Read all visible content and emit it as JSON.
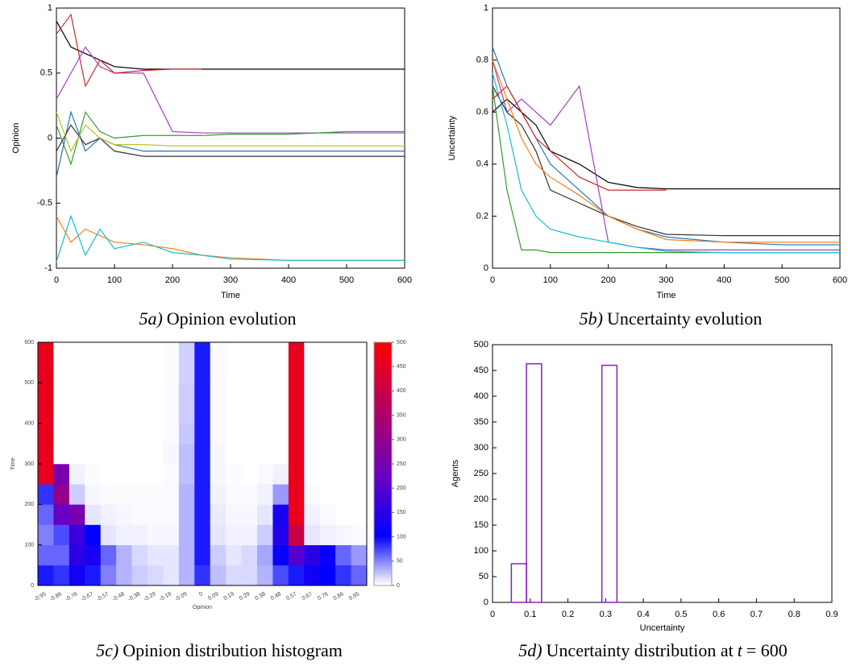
{
  "chart_data": [
    {
      "type": "line",
      "xlabel": "Time",
      "ylabel": "Opinion",
      "caption": [
        {
          "text": "5a)",
          "italic": true
        },
        {
          "text": "Opinion evolution",
          "italic": false
        }
      ],
      "xlim": [
        0,
        600
      ],
      "xticks": [
        0,
        100,
        200,
        300,
        400,
        500,
        600
      ],
      "ylim": [
        -1,
        1
      ],
      "yticks": [
        -1,
        -0.5,
        0,
        0.5,
        1
      ],
      "x": [
        0,
        25,
        50,
        75,
        100,
        150,
        200,
        250,
        300,
        400,
        500,
        600
      ],
      "series": [
        {
          "color": "#000000",
          "values": [
            0.9,
            0.7,
            0.65,
            0.6,
            0.55,
            0.53,
            0.53,
            0.53,
            0.53,
            0.53,
            0.53,
            0.53
          ]
        },
        {
          "color": "#a040c0",
          "values": [
            0.3,
            0.5,
            0.7,
            0.55,
            0.5,
            0.5,
            0.05,
            0.04,
            0.04,
            0.04,
            0.04,
            0.04
          ]
        },
        {
          "color": "#2ca02c",
          "values": [
            0.1,
            -0.2,
            0.2,
            0.05,
            0,
            0.02,
            0.02,
            0.02,
            0.03,
            0.03,
            0.05,
            0.05
          ]
        },
        {
          "color": "#1f77b4",
          "values": [
            -0.3,
            0.2,
            -0.1,
            0,
            -0.05,
            -0.1,
            -0.1,
            -0.1,
            -0.1,
            -0.1,
            -0.1,
            -0.1
          ]
        },
        {
          "color": "#333333",
          "values": [
            -0.1,
            0.1,
            -0.05,
            0,
            -0.1,
            -0.14,
            -0.14,
            -0.14,
            -0.14,
            -0.14,
            -0.14,
            -0.14
          ]
        },
        {
          "color": "#ff7f0e",
          "values": [
            -0.6,
            -0.8,
            -0.7,
            -0.75,
            -0.8,
            -0.82,
            -0.85,
            -0.9,
            -0.92,
            -0.94,
            -0.94,
            -0.94
          ]
        },
        {
          "color": "#17becf",
          "values": [
            -0.95,
            -0.6,
            -0.9,
            -0.7,
            -0.85,
            -0.8,
            -0.88,
            -0.9,
            -0.93,
            -0.94,
            -0.94,
            -0.94
          ]
        },
        {
          "color": "#d62728",
          "values": [
            0.8,
            0.95,
            0.4,
            0.6,
            0.5,
            0.52,
            0.53,
            0.53,
            null,
            null,
            null,
            null
          ]
        },
        {
          "color": "#bcbd22",
          "values": [
            0.2,
            -0.1,
            0.1,
            0,
            -0.05,
            -0.05,
            -0.06,
            -0.06,
            -0.06,
            -0.06,
            -0.06,
            -0.06
          ]
        }
      ]
    },
    {
      "type": "line",
      "xlabel": "Time",
      "ylabel": "Uncertainty",
      "caption": [
        {
          "text": "5b)",
          "italic": true
        },
        {
          "text": "Uncertainty evolution",
          "italic": false
        }
      ],
      "xlim": [
        0,
        600
      ],
      "xticks": [
        0,
        100,
        200,
        300,
        400,
        500,
        600
      ],
      "ylim": [
        0,
        1
      ],
      "yticks": [
        0,
        0.2,
        0.4,
        0.6,
        0.8,
        1
      ],
      "x": [
        0,
        25,
        50,
        75,
        100,
        150,
        200,
        250,
        300,
        400,
        500,
        600
      ],
      "series": [
        {
          "color": "#000000",
          "values": [
            0.6,
            0.65,
            0.6,
            0.55,
            0.45,
            0.4,
            0.33,
            0.31,
            0.305,
            0.305,
            0.305,
            0.305
          ]
        },
        {
          "color": "#a040c0",
          "values": [
            0.8,
            0.6,
            0.65,
            0.6,
            0.55,
            0.7,
            0.1,
            0.08,
            0.07,
            0.07,
            0.07,
            0.07
          ]
        },
        {
          "color": "#2ca02c",
          "values": [
            0.7,
            0.3,
            0.07,
            0.07,
            0.06,
            0.06,
            0.06,
            0.06,
            0.06,
            0.06,
            0.06,
            0.06
          ]
        },
        {
          "color": "#1f77b4",
          "values": [
            0.85,
            0.7,
            0.6,
            0.5,
            0.4,
            0.3,
            0.2,
            0.15,
            0.12,
            0.1,
            0.09,
            0.09
          ]
        },
        {
          "color": "#333333",
          "values": [
            0.7,
            0.6,
            0.55,
            0.45,
            0.3,
            0.25,
            0.2,
            0.16,
            0.13,
            0.125,
            0.125,
            0.125
          ]
        },
        {
          "color": "#ff7f0e",
          "values": [
            0.8,
            0.65,
            0.5,
            0.4,
            0.35,
            0.28,
            0.2,
            0.15,
            0.11,
            0.1,
            0.1,
            0.1
          ]
        },
        {
          "color": "#17becf",
          "values": [
            0.75,
            0.55,
            0.3,
            0.2,
            0.15,
            0.12,
            0.1,
            0.08,
            0.065,
            0.06,
            0.06,
            0.06
          ]
        },
        {
          "color": "#d62728",
          "values": [
            0.65,
            0.7,
            0.6,
            0.5,
            0.45,
            0.35,
            0.3,
            0.3,
            0.3,
            null,
            null,
            null
          ]
        }
      ]
    },
    {
      "type": "heatmap",
      "xlabel": "Opinion",
      "ylabel": "Time",
      "caption": [
        {
          "text": "5c)",
          "italic": true
        },
        {
          "text": "Opinion distribution histogram",
          "italic": false
        }
      ],
      "categories": [
        -0.95,
        -0.86,
        -0.76,
        -0.67,
        -0.57,
        -0.48,
        -0.38,
        -0.29,
        -0.19,
        -0.09,
        0,
        0.09,
        0.19,
        0.29,
        0.38,
        0.48,
        0.57,
        0.67,
        0.76,
        0.86,
        0.95
      ],
      "ylim": [
        0,
        600
      ],
      "yticks": [
        0,
        100,
        200,
        300,
        400,
        500,
        600
      ],
      "ybins": [
        0,
        50,
        100,
        150,
        200,
        250,
        300,
        350,
        400,
        450,
        500,
        550,
        600
      ],
      "clim": [
        0,
        500
      ],
      "cticks": [
        0,
        50,
        100,
        150,
        200,
        250,
        300,
        350,
        400,
        450,
        500
      ],
      "values": [
        [
          90,
          80,
          120,
          90,
          50,
          30,
          20,
          15,
          10,
          30,
          80,
          25,
          15,
          15,
          30,
          70,
          90,
          120,
          100,
          80,
          60
        ],
        [
          60,
          60,
          150,
          130,
          60,
          30,
          15,
          10,
          10,
          30,
          90,
          20,
          10,
          15,
          35,
          110,
          200,
          150,
          110,
          60,
          40
        ],
        [
          50,
          70,
          170,
          100,
          10,
          5,
          5,
          3,
          3,
          30,
          90,
          10,
          5,
          5,
          20,
          140,
          400,
          10,
          5,
          3,
          2
        ],
        [
          60,
          220,
          250,
          10,
          5,
          3,
          2,
          2,
          2,
          30,
          90,
          8,
          3,
          3,
          10,
          130,
          460,
          5,
          2,
          0,
          0
        ],
        [
          80,
          300,
          20,
          3,
          2,
          1,
          1,
          1,
          2,
          30,
          90,
          5,
          2,
          2,
          5,
          40,
          460,
          2,
          0,
          0,
          0
        ],
        [
          460,
          250,
          5,
          1,
          0,
          0,
          0,
          0,
          2,
          25,
          90,
          3,
          1,
          0,
          2,
          5,
          460,
          0,
          0,
          0,
          0
        ],
        [
          460,
          0,
          0,
          0,
          0,
          0,
          0,
          0,
          3,
          25,
          90,
          3,
          0,
          0,
          0,
          0,
          460,
          0,
          0,
          0,
          0
        ],
        [
          460,
          0,
          0,
          0,
          0,
          0,
          0,
          0,
          2,
          22,
          90,
          2,
          0,
          0,
          0,
          0,
          460,
          0,
          0,
          0,
          0
        ],
        [
          460,
          0,
          0,
          0,
          0,
          0,
          0,
          0,
          2,
          20,
          90,
          2,
          0,
          0,
          0,
          0,
          460,
          0,
          0,
          0,
          0
        ],
        [
          460,
          0,
          0,
          0,
          0,
          0,
          0,
          0,
          2,
          20,
          90,
          2,
          0,
          0,
          0,
          0,
          460,
          0,
          0,
          0,
          0
        ],
        [
          460,
          0,
          0,
          0,
          0,
          0,
          0,
          0,
          1,
          18,
          90,
          1,
          0,
          0,
          0,
          0,
          460,
          0,
          0,
          0,
          0
        ],
        [
          460,
          0,
          0,
          0,
          0,
          0,
          0,
          0,
          1,
          18,
          90,
          1,
          0,
          0,
          0,
          0,
          460,
          0,
          0,
          0,
          0
        ]
      ]
    },
    {
      "type": "histogram",
      "xlabel": "Uncertainty",
      "ylabel": "Agents",
      "color": "#8b1fb8",
      "caption": [
        {
          "text": "5d)",
          "italic": true
        },
        {
          "text": "Uncertainty distribution at",
          "italic": false
        },
        {
          "text": "t",
          "italic": true
        },
        {
          "text": "= 600",
          "italic": false
        }
      ],
      "xlim": [
        0,
        0.9
      ],
      "xticks": [
        0,
        0.1,
        0.2,
        0.3,
        0.4,
        0.5,
        0.6,
        0.7,
        0.8,
        0.9
      ],
      "ylim": [
        0,
        500
      ],
      "yticks": [
        0,
        50,
        100,
        150,
        200,
        250,
        300,
        350,
        400,
        450,
        500
      ],
      "bins": [
        0.05,
        0.09,
        0.13,
        0.29,
        0.33,
        0.9
      ],
      "counts": [
        75,
        463,
        0,
        460,
        0
      ]
    }
  ]
}
